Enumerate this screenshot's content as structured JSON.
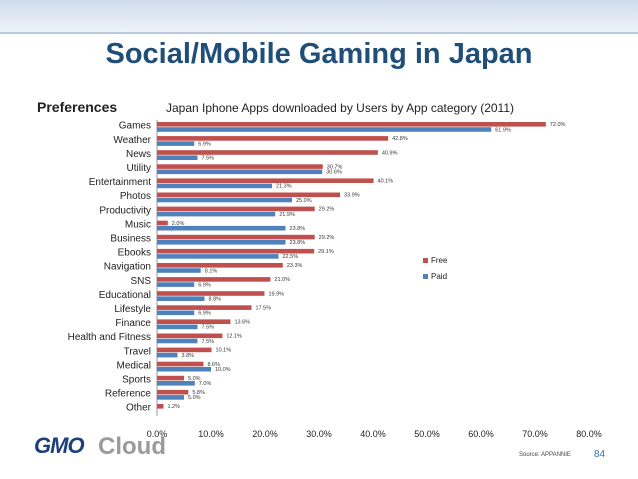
{
  "slide": {
    "title": "Social/Mobile Gaming in Japan",
    "preferences_label": "Preferences",
    "source": "Source: APPANNIE",
    "page_number": "84",
    "logo_text_1": "GMO",
    "logo_text_2": "Cloud"
  },
  "colors": {
    "free": "#c0504d",
    "paid": "#4f81bd",
    "band": "#cfdcec",
    "title": "#1f4e79"
  },
  "chart_data": {
    "type": "bar",
    "orientation": "horizontal",
    "title": "Japan Iphone Apps downloaded by Users by App category (2011)",
    "categories": [
      "Games",
      "Weather",
      "News",
      "Utility",
      "Entertainment",
      "Photos",
      "Productivity",
      "Music",
      "Business",
      "Ebooks",
      "Navigation",
      "SNS",
      "Educational",
      "Lifestyle",
      "Finance",
      "Health and Fitness",
      "Travel",
      "Medical",
      "Sports",
      "Reference",
      "Other"
    ],
    "series": [
      {
        "name": "Free",
        "values": [
          72.0,
          42.8,
          40.9,
          30.7,
          40.1,
          33.9,
          29.2,
          2.0,
          29.2,
          29.1,
          23.3,
          21.0,
          19.9,
          17.5,
          13.6,
          12.1,
          10.1,
          8.6,
          5.0,
          5.8,
          1.2
        ]
      },
      {
        "name": "Paid",
        "values": [
          61.9,
          6.9,
          7.5,
          30.6,
          21.3,
          25.0,
          21.9,
          23.8,
          23.8,
          22.5,
          8.1,
          6.9,
          8.8,
          6.9,
          7.5,
          7.5,
          3.8,
          10.0,
          7.0,
          5.0,
          null
        ]
      }
    ],
    "xlim": [
      0,
      80
    ],
    "xticks": [
      "0.0%",
      "10.0%",
      "20.0%",
      "30.0%",
      "40.0%",
      "50.0%",
      "60.0%",
      "70.0%",
      "80.0%"
    ],
    "legend_position": "right",
    "grid": false
  }
}
